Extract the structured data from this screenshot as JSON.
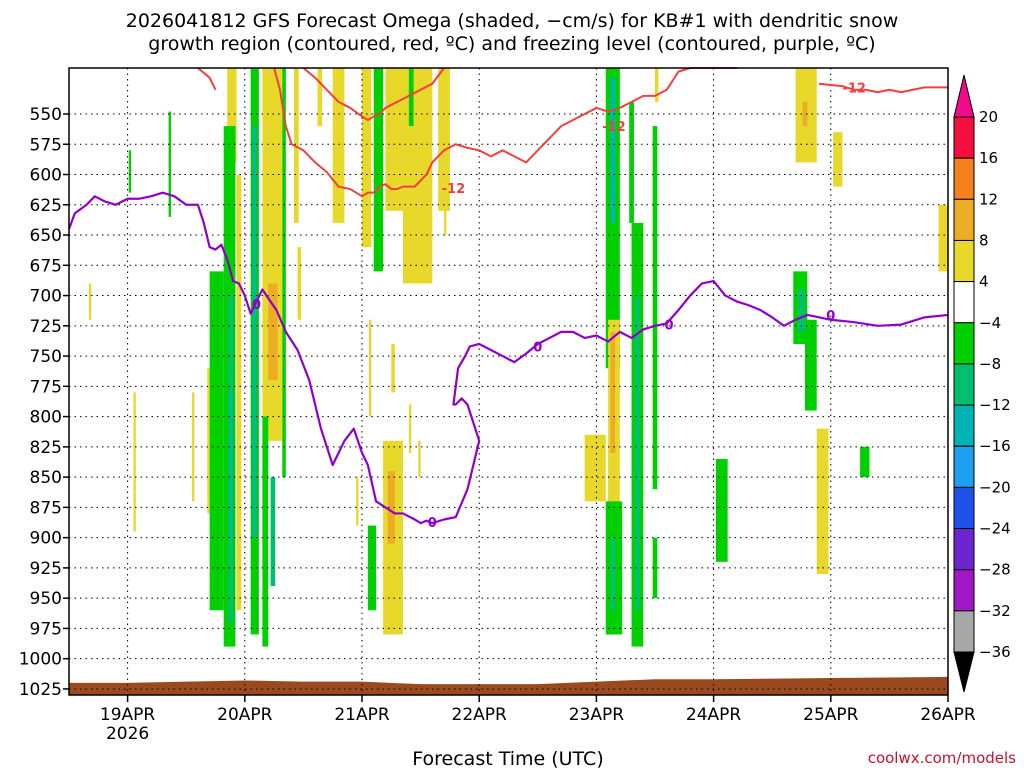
{
  "chart_data": {
    "type": "heatmap",
    "title_line1": "2026041812 GFS Forecast Omega (shaded, −cm/s) for KB#1 with dendritic snow",
    "title_line2": "growth region (contoured, red, ºC) and freezing level (contoured, purple, ºC)",
    "xlabel": "Forecast Time (UTC)",
    "credit": "coolwx.com/models",
    "y_reversed": true,
    "ylim": [
      1030,
      512
    ],
    "xlim": [
      18.5,
      26.0
    ],
    "y_ticks": [
      550,
      575,
      600,
      625,
      650,
      675,
      700,
      725,
      750,
      775,
      800,
      825,
      850,
      875,
      900,
      925,
      950,
      975,
      1000,
      1025
    ],
    "x_ticks": [
      {
        "x": 19,
        "label": "19APR",
        "sub": "2026"
      },
      {
        "x": 20,
        "label": "20APR",
        "sub": ""
      },
      {
        "x": 21,
        "label": "21APR",
        "sub": ""
      },
      {
        "x": 22,
        "label": "22APR",
        "sub": ""
      },
      {
        "x": 23,
        "label": "23APR",
        "sub": ""
      },
      {
        "x": 24,
        "label": "24APR",
        "sub": ""
      },
      {
        "x": 25,
        "label": "25APR",
        "sub": ""
      },
      {
        "x": 26,
        "label": "26APR",
        "sub": ""
      }
    ],
    "grid": true,
    "colorbar": {
      "bins": [
        {
          "color": "#f50f3e"
        },
        {
          "color": "#f58020"
        },
        {
          "color": "#ecac26"
        },
        {
          "color": "#e8d82a"
        },
        {
          "color": "#ffffff"
        },
        {
          "color": "#00d000"
        },
        {
          "color": "#00c070"
        },
        {
          "color": "#00b4b4"
        },
        {
          "color": "#1ea0f0"
        },
        {
          "color": "#1f50e8"
        },
        {
          "color": "#6d25d0"
        },
        {
          "color": "#a018c8"
        },
        {
          "color": "#a8a8a8"
        }
      ],
      "top_arrow_color": "#f00a8c",
      "bottom_arrow_color": "#000000",
      "labels": [
        "20",
        "16",
        "12",
        "8",
        "4",
        "−4",
        "−8",
        "−12",
        "−16",
        "−20",
        "−24",
        "−28",
        "−32",
        "−36"
      ]
    },
    "shading": [
      {
        "x0": 19.35,
        "x1": 19.37,
        "y0": 548,
        "y1": 635,
        "color": "#00d000"
      },
      {
        "x0": 19.01,
        "x1": 19.03,
        "y0": 580,
        "y1": 615,
        "color": "#00d000"
      },
      {
        "x0": 19.85,
        "x1": 19.93,
        "y0": 512,
        "y1": 590,
        "color": "#e8d82a"
      },
      {
        "x0": 19.68,
        "x1": 19.7,
        "y0": 760,
        "y1": 880,
        "color": "#e8d82a"
      },
      {
        "x0": 19.55,
        "x1": 19.57,
        "y0": 780,
        "y1": 870,
        "color": "#e8d82a"
      },
      {
        "x0": 19.05,
        "x1": 19.07,
        "y0": 780,
        "y1": 895,
        "color": "#e8d82a"
      },
      {
        "x0": 18.67,
        "x1": 18.69,
        "y0": 690,
        "y1": 720,
        "color": "#e8d82a"
      },
      {
        "x0": 19.7,
        "x1": 19.82,
        "y0": 680,
        "y1": 960,
        "color": "#00d000"
      },
      {
        "x0": 19.82,
        "x1": 19.92,
        "y0": 560,
        "y1": 990,
        "color": "#00d000"
      },
      {
        "x0": 19.86,
        "x1": 19.9,
        "y0": 700,
        "y1": 970,
        "color": "#00c070"
      },
      {
        "x0": 19.87,
        "x1": 19.89,
        "y0": 780,
        "y1": 900,
        "color": "#00b4b4"
      },
      {
        "x0": 19.93,
        "x1": 19.97,
        "y0": 600,
        "y1": 960,
        "color": "#e8d82a"
      },
      {
        "x0": 20.05,
        "x1": 20.12,
        "y0": 512,
        "y1": 980,
        "color": "#00d000"
      },
      {
        "x0": 20.07,
        "x1": 20.1,
        "y0": 560,
        "y1": 900,
        "color": "#00b4b4"
      },
      {
        "x0": 20.15,
        "x1": 20.32,
        "y0": 512,
        "y1": 820,
        "color": "#e8d82a"
      },
      {
        "x0": 20.2,
        "x1": 20.28,
        "y0": 690,
        "y1": 770,
        "color": "#ecac26"
      },
      {
        "x0": 20.15,
        "x1": 20.2,
        "y0": 800,
        "y1": 990,
        "color": "#00d000"
      },
      {
        "x0": 20.22,
        "x1": 20.26,
        "y0": 850,
        "y1": 940,
        "color": "#00c070"
      },
      {
        "x0": 20.32,
        "x1": 20.35,
        "y0": 512,
        "y1": 850,
        "color": "#00d000"
      },
      {
        "x0": 20.42,
        "x1": 20.46,
        "y0": 512,
        "y1": 640,
        "color": "#e8d82a"
      },
      {
        "x0": 20.45,
        "x1": 20.48,
        "y0": 660,
        "y1": 720,
        "color": "#e8d82a"
      },
      {
        "x0": 20.62,
        "x1": 20.66,
        "y0": 512,
        "y1": 560,
        "color": "#e8d82a"
      },
      {
        "x0": 20.75,
        "x1": 20.85,
        "y0": 512,
        "y1": 640,
        "color": "#e8d82a"
      },
      {
        "x0": 21.0,
        "x1": 21.08,
        "y0": 512,
        "y1": 660,
        "color": "#e8d82a"
      },
      {
        "x0": 21.06,
        "x1": 21.08,
        "y0": 720,
        "y1": 800,
        "color": "#e8d82a"
      },
      {
        "x0": 21.1,
        "x1": 21.18,
        "y0": 512,
        "y1": 680,
        "color": "#00d000"
      },
      {
        "x0": 21.2,
        "x1": 21.35,
        "y0": 512,
        "y1": 630,
        "color": "#e8d82a"
      },
      {
        "x0": 21.25,
        "x1": 21.28,
        "y0": 740,
        "y1": 780,
        "color": "#e8d82a"
      },
      {
        "x0": 21.35,
        "x1": 21.6,
        "y0": 512,
        "y1": 690,
        "color": "#e8d82a"
      },
      {
        "x0": 21.4,
        "x1": 21.44,
        "y0": 512,
        "y1": 560,
        "color": "#00d000"
      },
      {
        "x0": 21.65,
        "x1": 21.75,
        "y0": 512,
        "y1": 630,
        "color": "#e8d82a"
      },
      {
        "x0": 21.7,
        "x1": 21.72,
        "y0": 620,
        "y1": 650,
        "color": "#e8d82a"
      },
      {
        "x0": 21.4,
        "x1": 21.42,
        "y0": 790,
        "y1": 830,
        "color": "#e8d82a"
      },
      {
        "x0": 20.95,
        "x1": 20.97,
        "y0": 850,
        "y1": 890,
        "color": "#e8d82a"
      },
      {
        "x0": 21.05,
        "x1": 21.12,
        "y0": 890,
        "y1": 960,
        "color": "#00d000"
      },
      {
        "x0": 21.18,
        "x1": 21.35,
        "y0": 820,
        "y1": 980,
        "color": "#e8d82a"
      },
      {
        "x0": 21.22,
        "x1": 21.28,
        "y0": 845,
        "y1": 905,
        "color": "#ecac26"
      },
      {
        "x0": 21.48,
        "x1": 21.5,
        "y0": 820,
        "y1": 850,
        "color": "#e8d82a"
      },
      {
        "x0": 22.9,
        "x1": 23.08,
        "y0": 815,
        "y1": 870,
        "color": "#e8d82a"
      },
      {
        "x0": 23.08,
        "x1": 23.2,
        "y0": 512,
        "y1": 760,
        "color": "#00d000"
      },
      {
        "x0": 23.12,
        "x1": 23.16,
        "y0": 520,
        "y1": 640,
        "color": "#00b4b4"
      },
      {
        "x0": 23.1,
        "x1": 23.2,
        "y0": 720,
        "y1": 930,
        "color": "#e8d82a"
      },
      {
        "x0": 23.12,
        "x1": 23.16,
        "y0": 730,
        "y1": 830,
        "color": "#ecac26"
      },
      {
        "x0": 23.08,
        "x1": 23.22,
        "y0": 870,
        "y1": 980,
        "color": "#00d000"
      },
      {
        "x0": 23.12,
        "x1": 23.16,
        "y0": 900,
        "y1": 960,
        "color": "#00c070"
      },
      {
        "x0": 23.28,
        "x1": 23.32,
        "y0": 540,
        "y1": 640,
        "color": "#00d000"
      },
      {
        "x0": 23.3,
        "x1": 23.4,
        "y0": 640,
        "y1": 990,
        "color": "#00d000"
      },
      {
        "x0": 23.33,
        "x1": 23.37,
        "y0": 700,
        "y1": 960,
        "color": "#00c070"
      },
      {
        "x0": 23.48,
        "x1": 23.52,
        "y0": 560,
        "y1": 860,
        "color": "#00d000"
      },
      {
        "x0": 23.48,
        "x1": 23.52,
        "y0": 900,
        "y1": 950,
        "color": "#00d000"
      },
      {
        "x0": 23.5,
        "x1": 23.53,
        "y0": 512,
        "y1": 540,
        "color": "#e8d82a"
      },
      {
        "x0": 24.02,
        "x1": 24.12,
        "y0": 835,
        "y1": 920,
        "color": "#00d000"
      },
      {
        "x0": 24.7,
        "x1": 24.88,
        "y0": 512,
        "y1": 590,
        "color": "#e8d82a"
      },
      {
        "x0": 24.76,
        "x1": 24.8,
        "y0": 540,
        "y1": 560,
        "color": "#ecac26"
      },
      {
        "x0": 25.02,
        "x1": 25.1,
        "y0": 565,
        "y1": 610,
        "color": "#e8d82a"
      },
      {
        "x0": 24.68,
        "x1": 24.8,
        "y0": 680,
        "y1": 740,
        "color": "#00d000"
      },
      {
        "x0": 24.72,
        "x1": 24.78,
        "y0": 695,
        "y1": 730,
        "color": "#00c070"
      },
      {
        "x0": 24.78,
        "x1": 24.88,
        "y0": 720,
        "y1": 795,
        "color": "#00d000"
      },
      {
        "x0": 24.88,
        "x1": 24.98,
        "y0": 810,
        "y1": 930,
        "color": "#e8d82a"
      },
      {
        "x0": 25.25,
        "x1": 25.33,
        "y0": 825,
        "y1": 850,
        "color": "#00d000"
      },
      {
        "x0": 25.92,
        "x1": 26.0,
        "y0": 625,
        "y1": 680,
        "color": "#e8d82a"
      }
    ],
    "freezing_level": {
      "label": "0",
      "x": [
        18.5,
        18.55,
        18.65,
        18.72,
        18.8,
        18.9,
        19.0,
        19.1,
        19.2,
        19.3,
        19.4,
        19.5,
        19.6,
        19.65,
        19.7,
        19.75,
        19.8,
        19.85,
        19.9,
        19.95,
        20.0,
        20.05,
        20.1,
        20.15,
        20.22,
        20.27,
        20.35,
        20.45,
        20.55,
        20.65,
        20.75,
        20.85,
        20.93,
        21.0,
        21.05,
        21.12,
        21.2,
        21.28,
        21.35,
        21.45,
        21.5,
        21.55,
        21.6,
        21.7,
        21.8,
        21.9,
        21.95,
        22.0,
        21.9,
        21.85,
        21.8,
        21.78,
        21.82,
        21.88,
        21.92,
        22.0,
        22.1,
        22.2,
        22.3,
        22.4,
        22.5,
        22.6,
        22.7,
        22.8,
        22.9,
        23.0,
        23.1,
        23.2,
        23.3,
        23.4,
        23.5,
        23.6,
        23.7,
        23.8,
        23.9,
        24.0,
        24.1,
        24.2,
        24.3,
        24.4,
        24.5,
        24.6,
        24.7,
        24.8,
        24.9,
        25.0,
        25.2,
        25.4,
        25.6,
        25.8,
        26.0
      ],
      "y": [
        645,
        632,
        625,
        618,
        622,
        625,
        620,
        620,
        618,
        615,
        618,
        625,
        625,
        640,
        660,
        662,
        658,
        670,
        688,
        690,
        700,
        715,
        705,
        695,
        705,
        712,
        730,
        745,
        770,
        810,
        840,
        820,
        810,
        830,
        840,
        870,
        875,
        880,
        880,
        885,
        888,
        886,
        888,
        885,
        883,
        860,
        840,
        820,
        790,
        785,
        790,
        790,
        760,
        750,
        742,
        740,
        745,
        750,
        755,
        748,
        740,
        735,
        730,
        730,
        735,
        733,
        738,
        730,
        735,
        728,
        725,
        723,
        712,
        700,
        690,
        688,
        700,
        705,
        708,
        712,
        718,
        725,
        720,
        716,
        718,
        720,
        722,
        725,
        724,
        718,
        716
      ],
      "label_positions": [
        [
          20.1,
          707
        ],
        [
          21.6,
          887
        ],
        [
          23.62,
          724
        ],
        [
          25.0,
          716
        ],
        [
          22.5,
          742
        ]
      ],
      "color": "#9000c8"
    },
    "dendritic_growth": [
      {
        "label": "-12",
        "x": [
          20.25,
          20.3,
          20.35,
          20.4,
          20.5,
          20.6,
          20.7,
          20.8,
          20.9,
          21.0,
          21.05,
          21.1,
          21.15,
          21.2,
          21.25,
          21.3,
          21.35,
          21.45,
          21.55,
          21.6,
          21.62,
          21.7,
          21.8,
          21.9,
          22.0,
          22.1,
          22.2,
          22.3,
          22.4,
          22.5,
          22.6,
          22.7,
          22.8,
          22.9,
          23.0,
          23.1,
          23.2,
          23.3,
          23.4,
          23.5,
          23.6,
          23.7,
          23.8,
          23.9,
          24.0,
          24.1,
          24.2
        ],
        "y": [
          512,
          530,
          560,
          575,
          580,
          590,
          598,
          610,
          612,
          618,
          615,
          615,
          610,
          608,
          612,
          612,
          610,
          610,
          600,
          590,
          588,
          580,
          575,
          578,
          580,
          585,
          580,
          585,
          590,
          580,
          570,
          560,
          555,
          550,
          545,
          548,
          545,
          540,
          535,
          535,
          530,
          515,
          512,
          512,
          512,
          512,
          512
        ],
        "label_positions": [
          [
            21.78,
            611
          ],
          [
            23.15,
            560
          ],
          [
            25.2,
            528
          ]
        ],
        "color": "#f04040"
      },
      {
        "label": "",
        "x": [
          20.5,
          20.6,
          20.7,
          20.8,
          20.9,
          21.0,
          21.05,
          21.1,
          21.15,
          21.2,
          21.3,
          21.4,
          21.5,
          21.6,
          21.7
        ],
        "y": [
          512,
          520,
          530,
          540,
          545,
          552,
          555,
          552,
          550,
          545,
          540,
          535,
          530,
          525,
          512
        ],
        "label_positions": [],
        "color": "#f04040"
      },
      {
        "label": "",
        "x": [
          19.6,
          19.7,
          19.75
        ],
        "y": [
          512,
          520,
          530
        ],
        "label_positions": [],
        "color": "#f04040"
      },
      {
        "label": "",
        "x": [
          24.9,
          25.0,
          25.1,
          25.2,
          25.3,
          25.4,
          25.5,
          25.6,
          25.7,
          25.8,
          26.0
        ],
        "y": [
          525,
          526,
          527,
          530,
          530,
          532,
          530,
          532,
          530,
          528,
          528
        ],
        "label_positions": [],
        "color": "#f04040"
      }
    ],
    "terrain": {
      "color": "#9a4a1e",
      "top_y": [
        1020,
        1020,
        1019,
        1018,
        1019,
        1019,
        1021,
        1021,
        1021,
        1019,
        1017,
        1017,
        1016,
        1015
      ],
      "top_x": [
        18.5,
        19.0,
        19.5,
        20.0,
        20.5,
        21.0,
        21.5,
        22.0,
        22.5,
        23.0,
        23.5,
        24.0,
        25.0,
        26.0
      ]
    }
  }
}
